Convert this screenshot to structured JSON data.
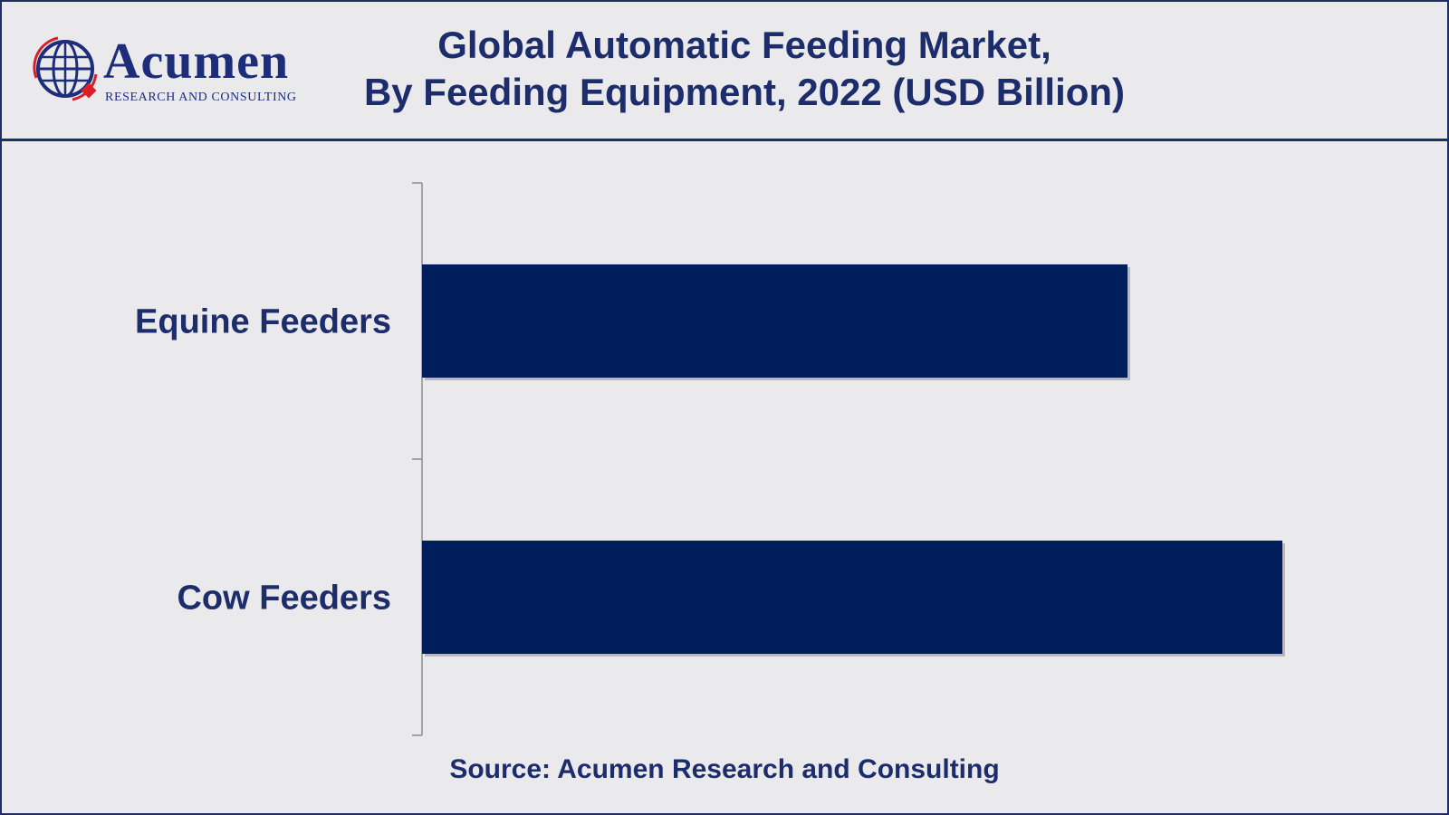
{
  "logo": {
    "wordmark": "Acumen",
    "tagline": "RESEARCH AND CONSULTING"
  },
  "header": {
    "title_line1": "Global Automatic Feeding Market,",
    "title_line2": "By Feeding Equipment, 2022 (USD Billion)"
  },
  "chart_data": {
    "type": "bar",
    "orientation": "horizontal",
    "categories": [
      "Equine Feeders",
      "Cow Feeders"
    ],
    "values": [
      4.1,
      5.0
    ],
    "xlabel": "",
    "ylabel": "",
    "xlim": [
      0,
      5.6
    ],
    "grid": false,
    "color": "#001e5b"
  },
  "source": "Source: Acumen Research and Consulting"
}
